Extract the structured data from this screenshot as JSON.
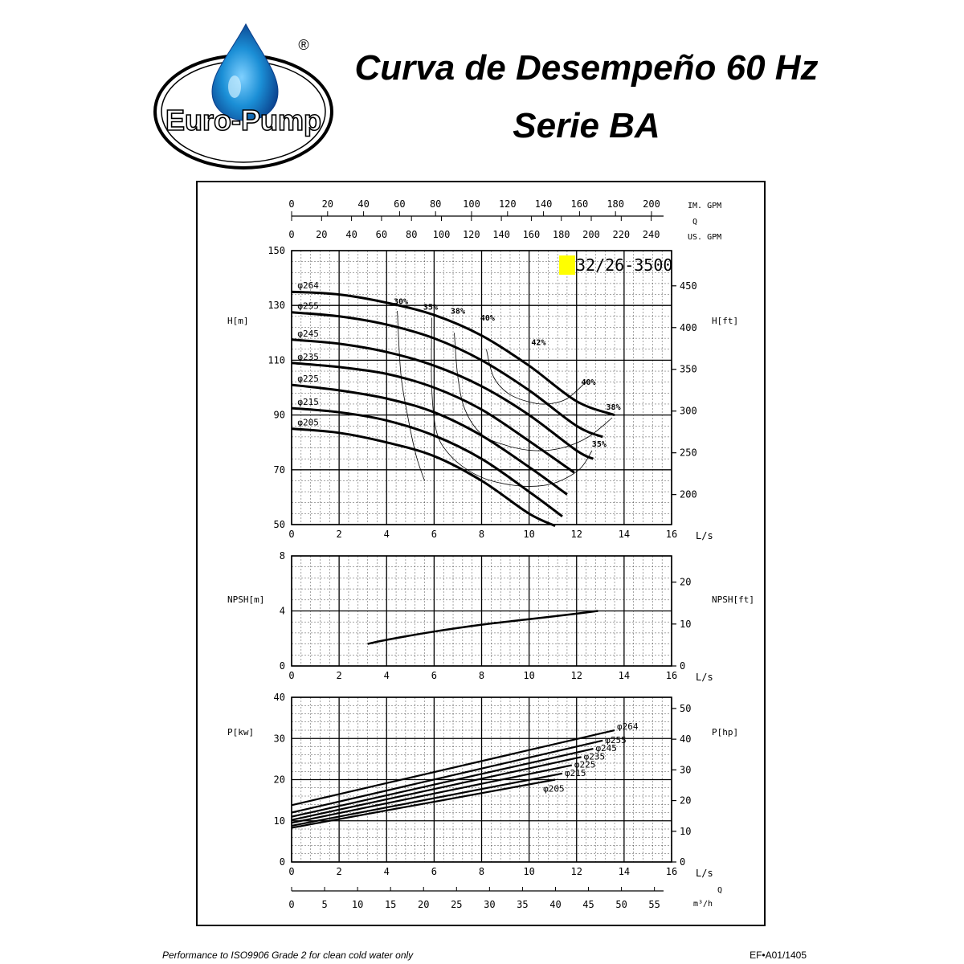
{
  "brand": {
    "name": "Euro-Pump",
    "registered_mark": "®",
    "drop_color": "#1b8fd6",
    "ring_color": "#000000"
  },
  "header": {
    "title_line1": "Curva de Desempeño 60 Hz",
    "title_line2": "Serie BA"
  },
  "footer": {
    "note": "Performance to ISO9906 Grade 2 for clean cold water only",
    "code": "EF•A01/1405"
  },
  "chart_data": [
    {
      "type": "line",
      "panel": "head",
      "model_label": "32/26-3500",
      "model_highlight_color": "#ffff00",
      "xlabel": "L/s",
      "ylabel_left": "H[m]",
      "ylabel_right": "H[ft]",
      "xlim": [
        0,
        16
      ],
      "ylim": [
        50,
        150
      ],
      "x_ticks": [
        "0",
        "2",
        "4",
        "6",
        "8",
        "10",
        "12",
        "14",
        "16"
      ],
      "y_ticks_left": [
        "50",
        "70",
        "90",
        "110",
        "130",
        "150"
      ],
      "y_ticks_right": [
        "200",
        "250",
        "300",
        "350",
        "400",
        "450"
      ],
      "top_axis": {
        "label_q": "Q",
        "label_imp": "IM. GPM",
        "label_us": "US. GPM",
        "imp_ticks": [
          "0",
          "20",
          "40",
          "60",
          "80",
          "100",
          "120",
          "140",
          "160",
          "180",
          "200"
        ],
        "us_ticks": [
          "0",
          "20",
          "40",
          "60",
          "80",
          "100",
          "120",
          "140",
          "160",
          "180",
          "200",
          "220",
          "240"
        ]
      },
      "grid": true,
      "series": [
        {
          "name": "φ264",
          "x": [
            0,
            2,
            4,
            6,
            8,
            10,
            12,
            13.6
          ],
          "y": [
            135,
            134,
            131,
            126.5,
            119,
            108,
            95,
            90
          ]
        },
        {
          "name": "φ255",
          "x": [
            0,
            2,
            4,
            6,
            8,
            10,
            12,
            13.1
          ],
          "y": [
            127.5,
            126,
            123,
            118,
            110,
            99,
            86,
            82
          ]
        },
        {
          "name": "φ245",
          "x": [
            0,
            2,
            4,
            6,
            8,
            10,
            12,
            12.7
          ],
          "y": [
            117.5,
            116,
            113,
            108,
            100.5,
            90,
            77,
            74
          ]
        },
        {
          "name": "φ235",
          "x": [
            0,
            2,
            4,
            6,
            8,
            10,
            11.9
          ],
          "y": [
            109,
            107.5,
            105,
            100,
            92,
            80.5,
            69
          ]
        },
        {
          "name": "φ225",
          "x": [
            0,
            2,
            4,
            6,
            8,
            10,
            11.6
          ],
          "y": [
            101,
            99,
            96,
            91,
            82.5,
            71,
            61
          ]
        },
        {
          "name": "φ215",
          "x": [
            0,
            2,
            4,
            6,
            8,
            10,
            11.4
          ],
          "y": [
            92.5,
            91,
            88,
            82.5,
            74,
            62,
            53
          ]
        },
        {
          "name": "φ205",
          "x": [
            0,
            2,
            4,
            6,
            8,
            10,
            11.1
          ],
          "y": [
            85,
            83.5,
            80,
            75,
            66,
            54,
            49.5
          ]
        }
      ],
      "efficiency_curves": [
        {
          "name": "30%",
          "x": [
            4.45,
            4.6,
            4.9,
            5.25,
            5.6
          ],
          "y": [
            128,
            105,
            89,
            75,
            66
          ]
        },
        {
          "name": "35%",
          "x": [
            5.9,
            5.9,
            6.1,
            6.6,
            7.4,
            8.4,
            9.8,
            11,
            12.1,
            12.65
          ],
          "y": [
            125.5,
            100,
            84,
            76,
            70,
            66,
            64,
            65,
            70,
            77
          ]
        },
        {
          "name": "38%",
          "x": [
            6.85,
            7,
            7.3,
            8,
            9,
            10.2,
            11.4,
            12.5,
            13.5
          ],
          "y": [
            120,
            104,
            92,
            83,
            79,
            77,
            78,
            82,
            89
          ]
        },
        {
          "name": "40%",
          "x": [
            8.2,
            8.5,
            9.1,
            9.9,
            10.7,
            11.6,
            12.5
          ],
          "y": [
            114,
            104,
            98,
            95,
            94,
            96,
            103
          ]
        }
      ],
      "efficiency_labels": [
        {
          "text": "30%",
          "x": 4.6,
          "y": 130.5
        },
        {
          "text": "35%",
          "x": 5.85,
          "y": 128.5
        },
        {
          "text": "38%",
          "x": 7.0,
          "y": 127
        },
        {
          "text": "40%",
          "x": 8.25,
          "y": 124.5
        },
        {
          "text": "42%",
          "x": 10.4,
          "y": 115.5
        },
        {
          "text": "40%",
          "x": 12.5,
          "y": 101
        },
        {
          "text": "38%",
          "x": 13.55,
          "y": 92
        },
        {
          "text": "35%",
          "x": 12.95,
          "y": 78.5
        }
      ]
    },
    {
      "type": "line",
      "panel": "npsh",
      "xlabel": "L/s",
      "ylabel_left": "NPSH[m]",
      "ylabel_right": "NPSH[ft]",
      "xlim": [
        0,
        16
      ],
      "ylim": [
        0,
        8
      ],
      "x_ticks": [
        "0",
        "2",
        "4",
        "6",
        "8",
        "10",
        "12",
        "14",
        "16"
      ],
      "y_ticks_left": [
        "0",
        "4",
        "8"
      ],
      "y_ticks_right": [
        "0",
        "10",
        "20"
      ],
      "grid": true,
      "series": [
        {
          "name": "NPSH",
          "x": [
            3.2,
            4,
            6,
            8,
            10,
            12,
            12.9
          ],
          "y": [
            1.6,
            1.9,
            2.5,
            3.0,
            3.4,
            3.8,
            4.0
          ]
        }
      ]
    },
    {
      "type": "line",
      "panel": "power",
      "xlabel": "L/s",
      "ylabel_left": "P[kw]",
      "ylabel_right": "P[hp]",
      "xlim": [
        0,
        16
      ],
      "ylim": [
        0,
        40
      ],
      "x_ticks": [
        "0",
        "2",
        "4",
        "6",
        "8",
        "10",
        "12",
        "14",
        "16"
      ],
      "y_ticks_left": [
        "0",
        "10",
        "20",
        "30",
        "40"
      ],
      "y_ticks_right": [
        "0",
        "10",
        "20",
        "30",
        "40",
        "50"
      ],
      "bottom_axis": {
        "label_q": "Q",
        "label_unit": "m³/h",
        "ticks": [
          "0",
          "5",
          "10",
          "15",
          "20",
          "25",
          "30",
          "35",
          "40",
          "45",
          "50",
          "55"
        ]
      },
      "grid": true,
      "series": [
        {
          "name": "φ264",
          "x": [
            0,
            13.6
          ],
          "y": [
            13.8,
            32
          ]
        },
        {
          "name": "φ255",
          "x": [
            0,
            13.1
          ],
          "y": [
            12,
            29.5
          ]
        },
        {
          "name": "φ245",
          "x": [
            0,
            12.7
          ],
          "y": [
            11,
            27.5
          ]
        },
        {
          "name": "φ235",
          "x": [
            0,
            12.2
          ],
          "y": [
            10.2,
            25.5
          ]
        },
        {
          "name": "φ225",
          "x": [
            0,
            11.8
          ],
          "y": [
            9.5,
            23.5
          ]
        },
        {
          "name": "φ215",
          "x": [
            0,
            11.4
          ],
          "y": [
            8.8,
            21.5
          ]
        },
        {
          "name": "φ205",
          "x": [
            0,
            11.1
          ],
          "y": [
            8.3,
            20
          ]
        }
      ]
    }
  ]
}
